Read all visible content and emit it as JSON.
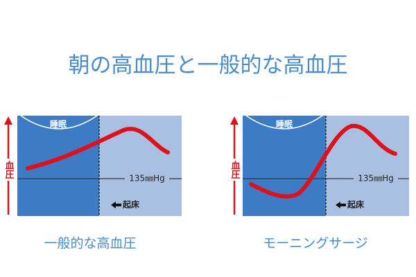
{
  "title": "朝の高血圧と一般的な高血圧",
  "panels": [
    {
      "axis_label": "血圧",
      "sleep_label": "睡眠",
      "threshold_label": "135㎜Hg",
      "wake_label": "起床",
      "caption": "一般的な高血圧"
    },
    {
      "axis_label": "血圧",
      "sleep_label": "睡眠",
      "threshold_label": "135㎜Hg",
      "wake_label": "起床",
      "caption": "モーニングサージ"
    }
  ]
}
